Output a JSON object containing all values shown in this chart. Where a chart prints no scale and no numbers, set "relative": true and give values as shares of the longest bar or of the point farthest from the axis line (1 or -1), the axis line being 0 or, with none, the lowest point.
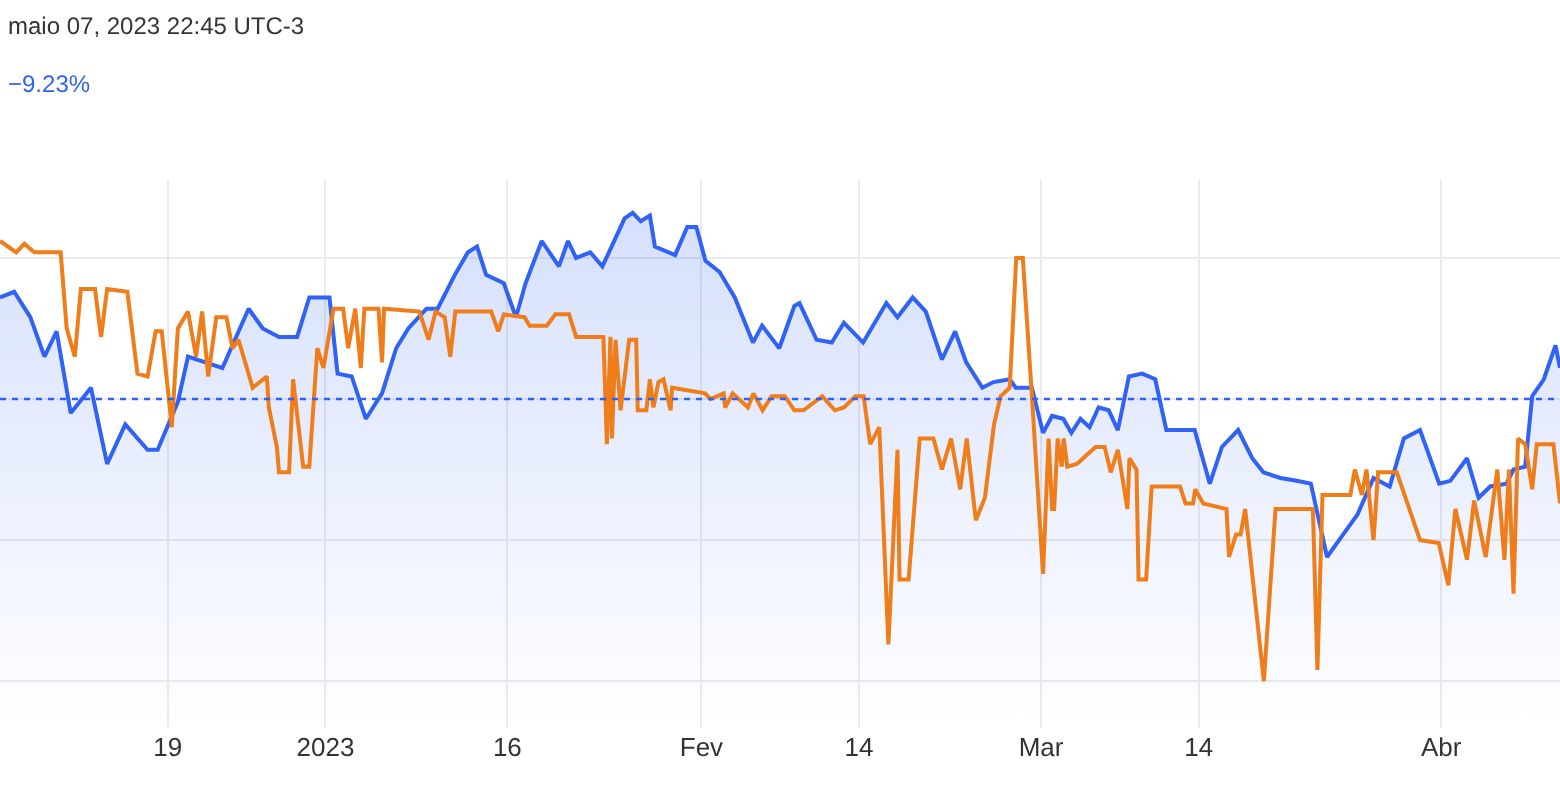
{
  "chart_data": {
    "type": "line",
    "relative": true,
    "grid": true,
    "marker": "none",
    "line_style": "solid",
    "annotations": [
      "maio 07, 2023 22:45 UTC-3",
      "−9.23%"
    ],
    "xlim": [
      "2022-12-05T04:00",
      "2023-04-12T19:00"
    ],
    "xticks": [
      {
        "value": "2022-12-19",
        "label": "19"
      },
      {
        "value": "2023-01-01",
        "label": "2023"
      },
      {
        "value": "2023-01-16",
        "label": "16"
      },
      {
        "value": "2023-02-01",
        "label": "Fev"
      },
      {
        "value": "2023-02-14",
        "label": "14"
      },
      {
        "value": "2023-03-01",
        "label": "Mar"
      },
      {
        "value": "2023-03-14",
        "label": "14"
      },
      {
        "value": "2023-04-03",
        "label": "Abr"
      }
    ],
    "ref_lines": [
      {
        "axis": "y",
        "value": 0,
        "line_style": "dotted",
        "color": "#2f62f5"
      }
    ],
    "series": [
      {
        "type": "area",
        "color": "#2f62f5",
        "x": [
          "2022-12-05T04:00",
          "2022-12-06T08:00",
          "2022-12-07T16:00",
          "2022-12-08T20:00",
          "2022-12-09T20:00",
          "2022-12-11T00:00",
          "2022-12-12T16:00",
          "2022-12-14T00:00",
          "2022-12-15T12:00",
          "2022-12-17T08:00",
          "2022-12-18T04:00",
          "2022-12-19T20:00",
          "2022-12-20T16:00",
          "2022-12-23T12:00",
          "2022-12-25T16:00",
          "2022-12-26T20:00",
          "2022-12-28T04:00",
          "2022-12-29T16:00",
          "2022-12-30T16:00",
          "2023-01-01T08:00",
          "2023-01-02T00:00",
          "2023-01-03T04:00",
          "2023-01-04T08:00",
          "2023-01-05T16:00",
          "2023-01-06T20:00",
          "2023-01-07T20:00",
          "2023-01-09T08:00",
          "2023-01-10T06:00",
          "2023-01-11T16:00",
          "2023-01-12T18:00",
          "2023-01-13T12:00",
          "2023-01-14T06:00",
          "2023-01-15T17:00",
          "2023-01-16T17:00",
          "2023-01-17T12:00",
          "2023-01-18T20:00",
          "2023-01-20T06:00",
          "2023-01-21T00:00",
          "2023-01-21T16:00",
          "2023-01-22T20:00",
          "2023-01-23T20:00",
          "2023-01-24T22:00",
          "2023-01-25T16:00",
          "2023-01-26T08:00",
          "2023-01-27T00:00",
          "2023-01-27T18:00",
          "2023-01-28T04:00",
          "2023-01-29T20:00",
          "2023-01-30T20:00",
          "2023-01-31T14:00",
          "2023-02-01T08:00",
          "2023-02-02T12:00",
          "2023-02-03T18:00",
          "2023-02-05T06:00",
          "2023-02-06T00:00",
          "2023-02-07T10:00",
          "2023-02-08T16:00",
          "2023-02-09T02:00",
          "2023-02-10T12:00",
          "2023-02-11T18:00",
          "2023-02-12T18:00",
          "2023-02-14T08:00",
          "2023-02-16T06:00",
          "2023-02-17T04:00",
          "2023-02-18T10:00",
          "2023-02-19T12:00",
          "2023-02-20T20:00",
          "2023-02-21T22:00",
          "2023-02-22T20:00",
          "2023-02-24T04:00",
          "2023-02-25T02:00",
          "2023-02-26T10:00",
          "2023-02-26T22:00",
          "2023-02-28T06:00",
          "2023-03-01T04:00",
          "2023-03-01T22:00",
          "2023-03-02T20:00",
          "2023-03-03T12:00",
          "2023-03-04T06:00",
          "2023-03-05T00:00",
          "2023-03-05T18:00",
          "2023-03-06T14:00",
          "2023-03-07T08:00",
          "2023-03-08T06:00",
          "2023-03-09T08:00",
          "2023-03-10T10:00",
          "2023-03-11T08:00",
          "2023-03-12T18:00",
          "2023-03-13T16:00",
          "2023-03-14T22:00",
          "2023-03-15T22:00",
          "2023-03-17T06:00",
          "2023-03-18T10:00",
          "2023-03-19T08:00",
          "2023-03-20T18:00",
          "2023-03-22T02:00",
          "2023-03-23T06:00",
          "2023-03-24T14:00",
          "2023-03-25T22:00",
          "2023-03-27T02:00",
          "2023-03-28T10:00",
          "2023-03-29T18:00",
          "2023-03-30T22:00",
          "2023-04-01T06:00",
          "2023-04-02T20:00",
          "2023-04-03T18:00",
          "2023-04-05T03:00",
          "2023-04-06T02:00",
          "2023-04-07T01:00",
          "2023-04-08T09:00",
          "2023-04-08T23:00",
          "2023-04-09T22:00",
          "2023-04-10T12:00",
          "2023-04-11T11:00",
          "2023-04-12T10:00",
          "2023-04-12T19:00"
        ],
        "values": [
          0.36,
          0.38,
          0.29,
          0.15,
          0.24,
          -0.05,
          0.04,
          -0.23,
          -0.09,
          -0.18,
          -0.18,
          -0.01,
          0.15,
          0.11,
          0.32,
          0.25,
          0.22,
          0.22,
          0.36,
          0.36,
          0.09,
          0.08,
          -0.07,
          0.02,
          0.18,
          0.25,
          0.32,
          0.32,
          0.44,
          0.52,
          0.54,
          0.44,
          0.41,
          0.29,
          0.41,
          0.56,
          0.47,
          0.56,
          0.5,
          0.52,
          0.47,
          0.57,
          0.64,
          0.66,
          0.63,
          0.65,
          0.54,
          0.51,
          0.61,
          0.61,
          0.49,
          0.45,
          0.36,
          0.2,
          0.26,
          0.18,
          0.33,
          0.34,
          0.21,
          0.2,
          0.27,
          0.2,
          0.34,
          0.29,
          0.36,
          0.31,
          0.14,
          0.24,
          0.13,
          0.04,
          0.06,
          0.07,
          0.04,
          0.04,
          -0.12,
          -0.06,
          -0.07,
          -0.12,
          -0.07,
          -0.1,
          -0.03,
          -0.04,
          -0.11,
          0.08,
          0.09,
          0.07,
          -0.11,
          -0.11,
          -0.11,
          -0.3,
          -0.17,
          -0.11,
          -0.21,
          -0.26,
          -0.28,
          -0.29,
          -0.3,
          -0.56,
          -0.48,
          -0.41,
          -0.28,
          -0.31,
          -0.14,
          -0.11,
          -0.3,
          -0.29,
          -0.21,
          -0.35,
          -0.31,
          -0.3,
          -0.25,
          -0.24,
          0.01,
          0.07,
          0.19,
          0.11
        ]
      },
      {
        "color": "#ef7d1a",
        "x": [
          "2022-12-05T04:00",
          "2022-12-06T12:00",
          "2022-12-07T04:00",
          "2022-12-08T00:00",
          "2022-12-10T04:00",
          "2022-12-10T16:00",
          "2022-12-11T08:00",
          "2022-12-11T20:00",
          "2022-12-13T00:00",
          "2022-12-13T12:00",
          "2022-12-14T00:00",
          "2022-12-15T16:00",
          "2022-12-16T12:00",
          "2022-12-17T08:00",
          "2022-12-18T00:00",
          "2022-12-18T12:00",
          "2022-12-19T08:00",
          "2022-12-19T20:00",
          "2022-12-20T16:00",
          "2022-12-21T08:00",
          "2022-12-21T20:00",
          "2022-12-22T08:00",
          "2022-12-23T00:00",
          "2022-12-23T20:00",
          "2022-12-24T08:00",
          "2022-12-24T20:00",
          "2022-12-26T00:00",
          "2022-12-27T04:00",
          "2022-12-27T08:00",
          "2022-12-28T00:00",
          "2022-12-28T04:00",
          "2022-12-29T00:00",
          "2022-12-29T08:00",
          "2022-12-30T04:00",
          "2022-12-30T16:00",
          "2022-12-31T08:00",
          "2022-12-31T20:00",
          "2023-01-01T16:00",
          "2023-01-02T11:00",
          "2023-01-02T21:00",
          "2023-01-03T11:00",
          "2023-01-03T22:00",
          "2023-01-04T05:00",
          "2023-01-05T09:00",
          "2023-01-05T16:00",
          "2023-01-05T20:00",
          "2023-01-08T18:00",
          "2023-01-09T12:00",
          "2023-01-10T02:00",
          "2023-01-10T20:00",
          "2023-01-11T07:00",
          "2023-01-11T17:00",
          "2023-01-14T16:00",
          "2023-01-15T06:00",
          "2023-01-15T17:00",
          "2023-01-17T10:00",
          "2023-01-17T20:00",
          "2023-01-19T06:00",
          "2023-01-19T23:00",
          "2023-01-21T02:00",
          "2023-01-21T16:00",
          "2023-01-23T22:00",
          "2023-01-24T05:00",
          "2023-01-24T12:00",
          "2023-01-24T15:00",
          "2023-01-24T22:00",
          "2023-01-25T08:00",
          "2023-01-26T01:00",
          "2023-01-26T15:00",
          "2023-01-26T18:00",
          "2023-01-27T11:00",
          "2023-01-27T18:00",
          "2023-01-28T01:00",
          "2023-01-28T11:00",
          "2023-01-28T21:00",
          "2023-01-29T11:00",
          "2023-01-29T14:00",
          "2023-02-01T07:00",
          "2023-02-01T18:00",
          "2023-02-02T20:00",
          "2023-02-02T23:00",
          "2023-02-03T14:00",
          "2023-02-04T20:00",
          "2023-02-05T07:00",
          "2023-02-06T01:00",
          "2023-02-06T19:00",
          "2023-02-07T21:00",
          "2023-02-08T16:00",
          "2023-02-09T10:00",
          "2023-02-10T23:00",
          "2023-02-12T00:00",
          "2023-02-12T18:00",
          "2023-02-13T17:00",
          "2023-02-14T09:00",
          "2023-02-14T22:00",
          "2023-02-15T16:00",
          "2023-02-16T10:00",
          "2023-02-17T04:00",
          "2023-02-17T08:00",
          "2023-02-18T02:00",
          "2023-02-19T00:00",
          "2023-02-20T03:00",
          "2023-02-20T20:00",
          "2023-02-21T14:00",
          "2023-02-22T08:00",
          "2023-02-22T21:00",
          "2023-02-23T15:00",
          "2023-02-24T09:00",
          "2023-02-25T03:00",
          "2023-02-25T16:00",
          "2023-02-26T10:00",
          "2023-02-26T23:00",
          "2023-02-27T12:00",
          "2023-02-28T06:00",
          "2023-03-01T04:00",
          "2023-03-01T15:00",
          "2023-03-01T22:00",
          "2023-03-02T02:00",
          "2023-03-02T09:00",
          "2023-03-02T17:00",
          "2023-03-02T21:00",
          "2023-03-03T04:00",
          "2023-03-03T23:00",
          "2023-03-05T12:00",
          "2023-03-06T06:00",
          "2023-03-06T18:00",
          "2023-03-07T08:00",
          "2023-03-08T03:00",
          "2023-03-08T07:00",
          "2023-03-08T21:00",
          "2023-03-09T01:00",
          "2023-03-09T16:00",
          "2023-03-10T03:00",
          "2023-03-12T11:00",
          "2023-03-12T22:00",
          "2023-03-13T13:00",
          "2023-03-13T17:00",
          "2023-03-14T09:00",
          "2023-03-16T07:00",
          "2023-03-16T12:00",
          "2023-03-17T02:00",
          "2023-03-17T11:00",
          "2023-03-17T20:00",
          "2023-03-19T09:00",
          "2023-03-20T08:00",
          "2023-03-23T01:00",
          "2023-03-23T10:00",
          "2023-03-23T19:00",
          "2023-03-24T05:00",
          "2023-03-26T12:00",
          "2023-03-26T21:00",
          "2023-03-27T11:00",
          "2023-03-27T20:00",
          "2023-03-28T10:00",
          "2023-03-28T19:00",
          "2023-03-30T08:00",
          "2023-04-01T06:00",
          "2023-04-02T19:00",
          "2023-04-03T14:00",
          "2023-04-04T04:00",
          "2023-04-05T03:00",
          "2023-04-05T17:00",
          "2023-04-06T16:00",
          "2023-04-07T15:00",
          "2023-04-08T05:00",
          "2023-04-08T14:00",
          "2023-04-08T23:00",
          "2023-04-09T08:00",
          "2023-04-09T22:00",
          "2023-04-10T12:00",
          "2023-04-10T21:00",
          "2023-04-12T06:00",
          "2023-04-12T19:00"
        ],
        "values": [
          0.56,
          0.52,
          0.55,
          0.52,
          0.52,
          0.25,
          0.15,
          0.39,
          0.39,
          0.22,
          0.39,
          0.38,
          0.09,
          0.08,
          0.24,
          0.24,
          -0.1,
          0.25,
          0.31,
          0.15,
          0.31,
          0.08,
          0.29,
          0.29,
          0.18,
          0.21,
          0.04,
          0.08,
          -0.03,
          -0.17,
          -0.26,
          -0.26,
          0.07,
          -0.24,
          -0.24,
          0.18,
          0.11,
          0.32,
          0.32,
          0.18,
          0.32,
          0.11,
          0.32,
          0.32,
          0.13,
          0.32,
          0.31,
          0.21,
          0.31,
          0.29,
          0.15,
          0.31,
          0.31,
          0.24,
          0.3,
          0.29,
          0.26,
          0.26,
          0.3,
          0.3,
          0.22,
          0.22,
          -0.16,
          0.22,
          -0.14,
          0.21,
          -0.04,
          0.21,
          0.21,
          -0.04,
          -0.04,
          0.07,
          -0.03,
          0.06,
          0.07,
          -0.04,
          0.04,
          0.02,
          0,
          0.02,
          -0.03,
          0.02,
          -0.03,
          0.02,
          -0.04,
          0.01,
          0.01,
          -0.04,
          -0.04,
          0.01,
          -0.04,
          -0.03,
          0.01,
          0.01,
          -0.16,
          -0.1,
          -0.87,
          -0.18,
          -0.64,
          -0.64,
          -0.14,
          -0.14,
          -0.25,
          -0.14,
          -0.32,
          -0.14,
          -0.43,
          -0.35,
          -0.09,
          0.01,
          0.04,
          0.5,
          0.5,
          0.01,
          -0.62,
          -0.14,
          -0.39,
          -0.39,
          -0.14,
          -0.24,
          -0.14,
          -0.24,
          -0.23,
          -0.17,
          -0.17,
          -0.26,
          -0.18,
          -0.39,
          -0.21,
          -0.25,
          -0.64,
          -0.64,
          -0.31,
          -0.31,
          -0.37,
          -0.37,
          -0.32,
          -0.37,
          -0.39,
          -0.56,
          -0.48,
          -0.48,
          -0.39,
          -1,
          -0.39,
          -0.39,
          -0.39,
          -0.96,
          -0.34,
          -0.34,
          -0.25,
          -0.34,
          -0.25,
          -0.5,
          -0.26,
          -0.26,
          -0.5,
          -0.51,
          -0.66,
          -0.39,
          -0.57,
          -0.36,
          -0.56,
          -0.25,
          -0.57,
          -0.25,
          -0.69,
          -0.14,
          -0.16,
          -0.32,
          -0.16,
          -0.16,
          -0.37
        ]
      }
    ]
  }
}
